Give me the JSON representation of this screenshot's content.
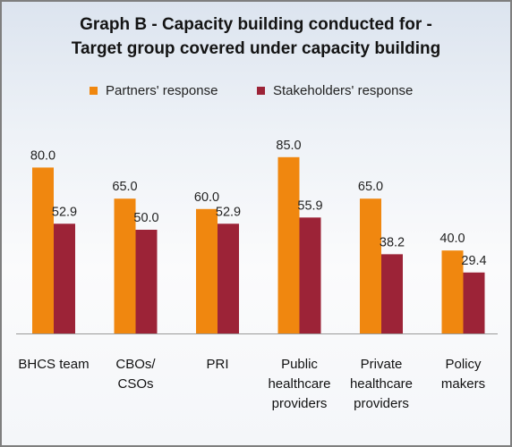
{
  "chart_data": {
    "type": "bar",
    "title": "Graph B - Capacity building conducted for -",
    "subtitle": "Target group covered under capacity building",
    "categories": [
      [
        "BHCS team"
      ],
      [
        "CBOs/",
        "CSOs"
      ],
      [
        "PRI"
      ],
      [
        "Public",
        "healthcare",
        "providers"
      ],
      [
        "Private",
        "healthcare",
        "providers"
      ],
      [
        "Policy",
        "makers"
      ]
    ],
    "series": [
      {
        "name": "Partners' response",
        "color": "#f0870f",
        "values": [
          80.0,
          65.0,
          60.0,
          85.0,
          65.0,
          40.0
        ],
        "labels": [
          "80.0",
          "65.0",
          "60.0",
          "85.0",
          "65.0",
          "40.0"
        ]
      },
      {
        "name": "Stakeholders' response",
        "color": "#9c2337",
        "values": [
          52.9,
          50.0,
          52.9,
          55.9,
          38.2,
          29.4
        ],
        "labels": [
          "52.9",
          "50.0",
          "52.9",
          "55.9",
          "38.2",
          "29.4"
        ]
      }
    ],
    "xlabel": "",
    "ylabel": "",
    "ylim": [
      0,
      100
    ],
    "grid": false,
    "legend_position": "top"
  }
}
